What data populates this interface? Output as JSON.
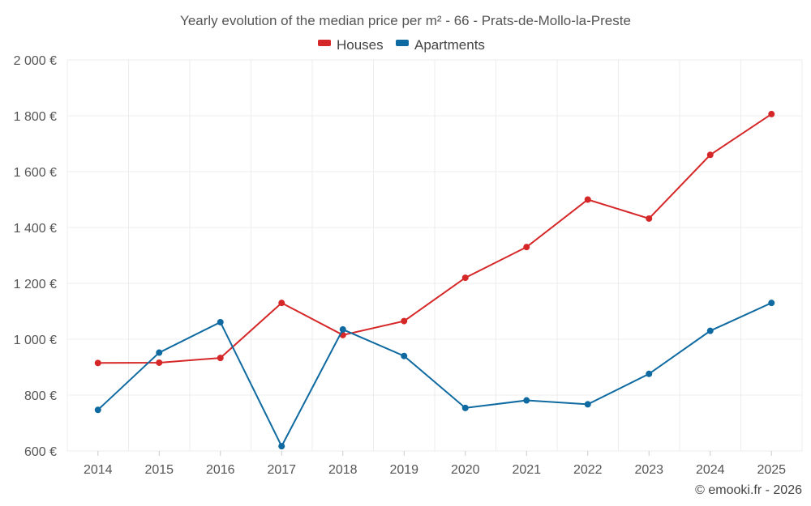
{
  "chart_data": {
    "type": "line",
    "title": "Yearly evolution of the median price per m² - 66 - Prats-de-Mollo-la-Preste",
    "categories": [
      "2014",
      "2015",
      "2016",
      "2017",
      "2018",
      "2019",
      "2020",
      "2021",
      "2022",
      "2023",
      "2024",
      "2025"
    ],
    "series": [
      {
        "name": "Houses",
        "color": "#d62728",
        "values": [
          915,
          916,
          933,
          1130,
          1015,
          1065,
          1220,
          1330,
          1500,
          1432,
          1660,
          1806
        ]
      },
      {
        "name": "Apartments",
        "color": "#0e6aa0",
        "values": [
          747,
          952,
          1061,
          617,
          1035,
          940,
          754,
          781,
          767,
          876,
          1030,
          1130
        ]
      }
    ],
    "ylim": [
      600,
      2000
    ],
    "yticks": [
      600,
      800,
      1000,
      1200,
      1400,
      1600,
      1800,
      2000
    ],
    "ytick_labels": [
      "600 €",
      "800 €",
      "1 000 €",
      "1 200 €",
      "1 400 €",
      "1 600 €",
      "1 800 €",
      "2 000 €"
    ],
    "xlabel": "",
    "ylabel": "",
    "grid": true,
    "legend_position": "top-center"
  },
  "credit": "© emooki.fr - 2026"
}
